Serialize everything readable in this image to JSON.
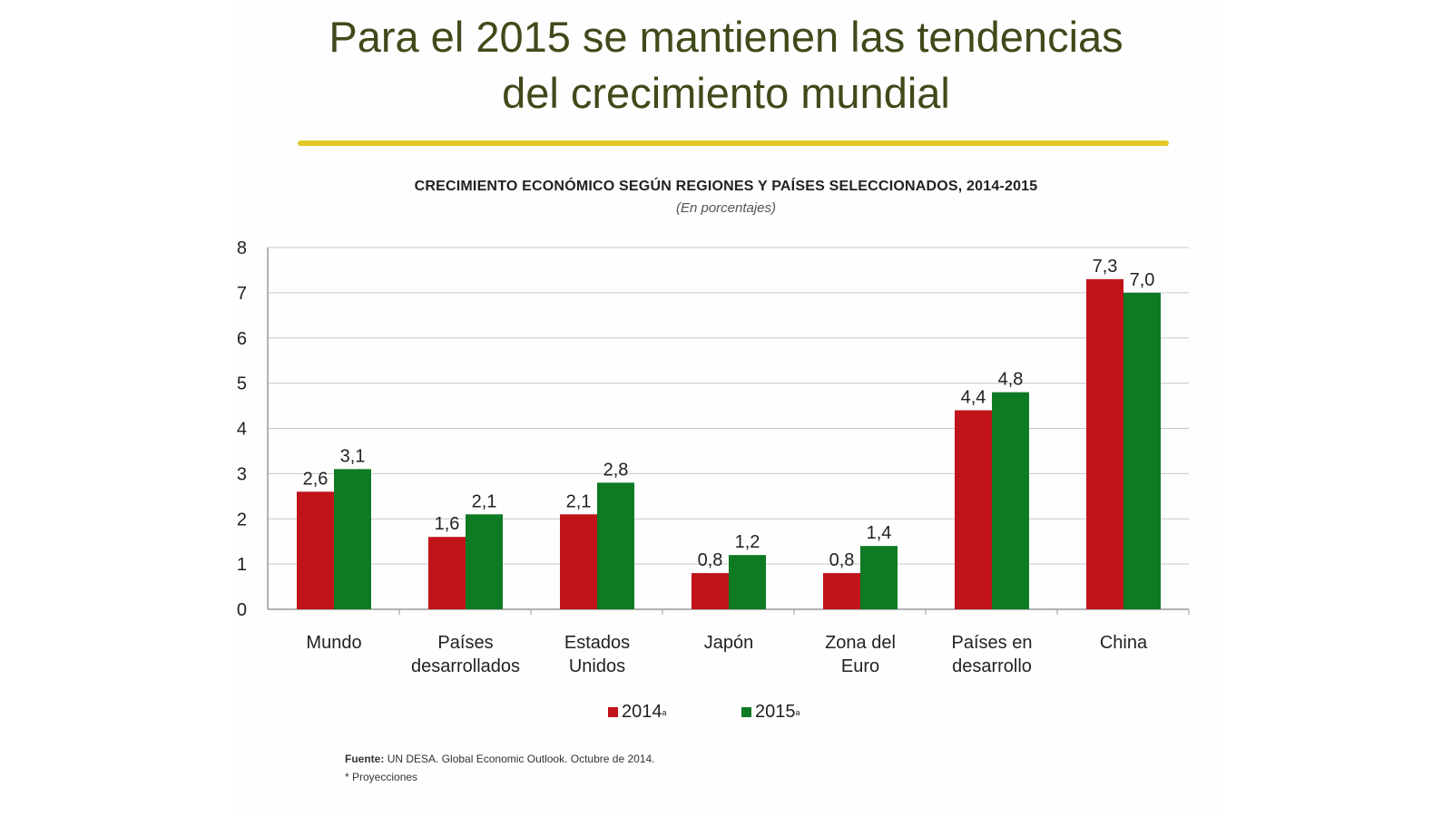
{
  "slide": {
    "title_line1": "Para el 2015 se mantienen las tendencias",
    "title_line2": "del crecimiento mundial",
    "accent_color": "#e2c827"
  },
  "chart_data": {
    "type": "bar",
    "title": "CRECIMIENTO ECONÓMICO  SEGÚN REGIONES Y PAÍSES SELECCIONADOS,  2014-2015",
    "subtitle": "(En porcentajes)",
    "categories": [
      [
        "Mundo"
      ],
      [
        "Países",
        "desarrollados"
      ],
      [
        "Estados",
        "Unidos"
      ],
      [
        "Japón"
      ],
      [
        "Zona del",
        "Euro"
      ],
      [
        "Países en",
        "desarrollo"
      ],
      [
        "China"
      ]
    ],
    "series": [
      {
        "name": "2014",
        "sup": "a",
        "color": "#c0131a",
        "values": [
          2.6,
          1.6,
          2.1,
          0.8,
          0.8,
          4.4,
          7.3
        ],
        "labels": [
          "2,6",
          "1,6",
          "2,1",
          "0,8",
          "0,8",
          "4,4",
          "7,3"
        ]
      },
      {
        "name": "2015",
        "sup": "a",
        "color": "#0e7a24",
        "values": [
          3.1,
          2.1,
          2.8,
          1.2,
          1.4,
          4.8,
          7.0
        ],
        "labels": [
          "3,1",
          "2,1",
          "2,8",
          "1,2",
          "1,4",
          "4,8",
          "7,0"
        ]
      }
    ],
    "ylim": [
      0,
      8
    ],
    "yticks": [
      "0",
      "1",
      "2",
      "3",
      "4",
      "5",
      "6",
      "7",
      "8"
    ],
    "grid": true,
    "legend": "bottom"
  },
  "footer": {
    "source_label": "Fuente:",
    "source_text": "UN DESA. Global Economic Outlook. Octubre de 2014.",
    "note": "* Proyecciones"
  }
}
